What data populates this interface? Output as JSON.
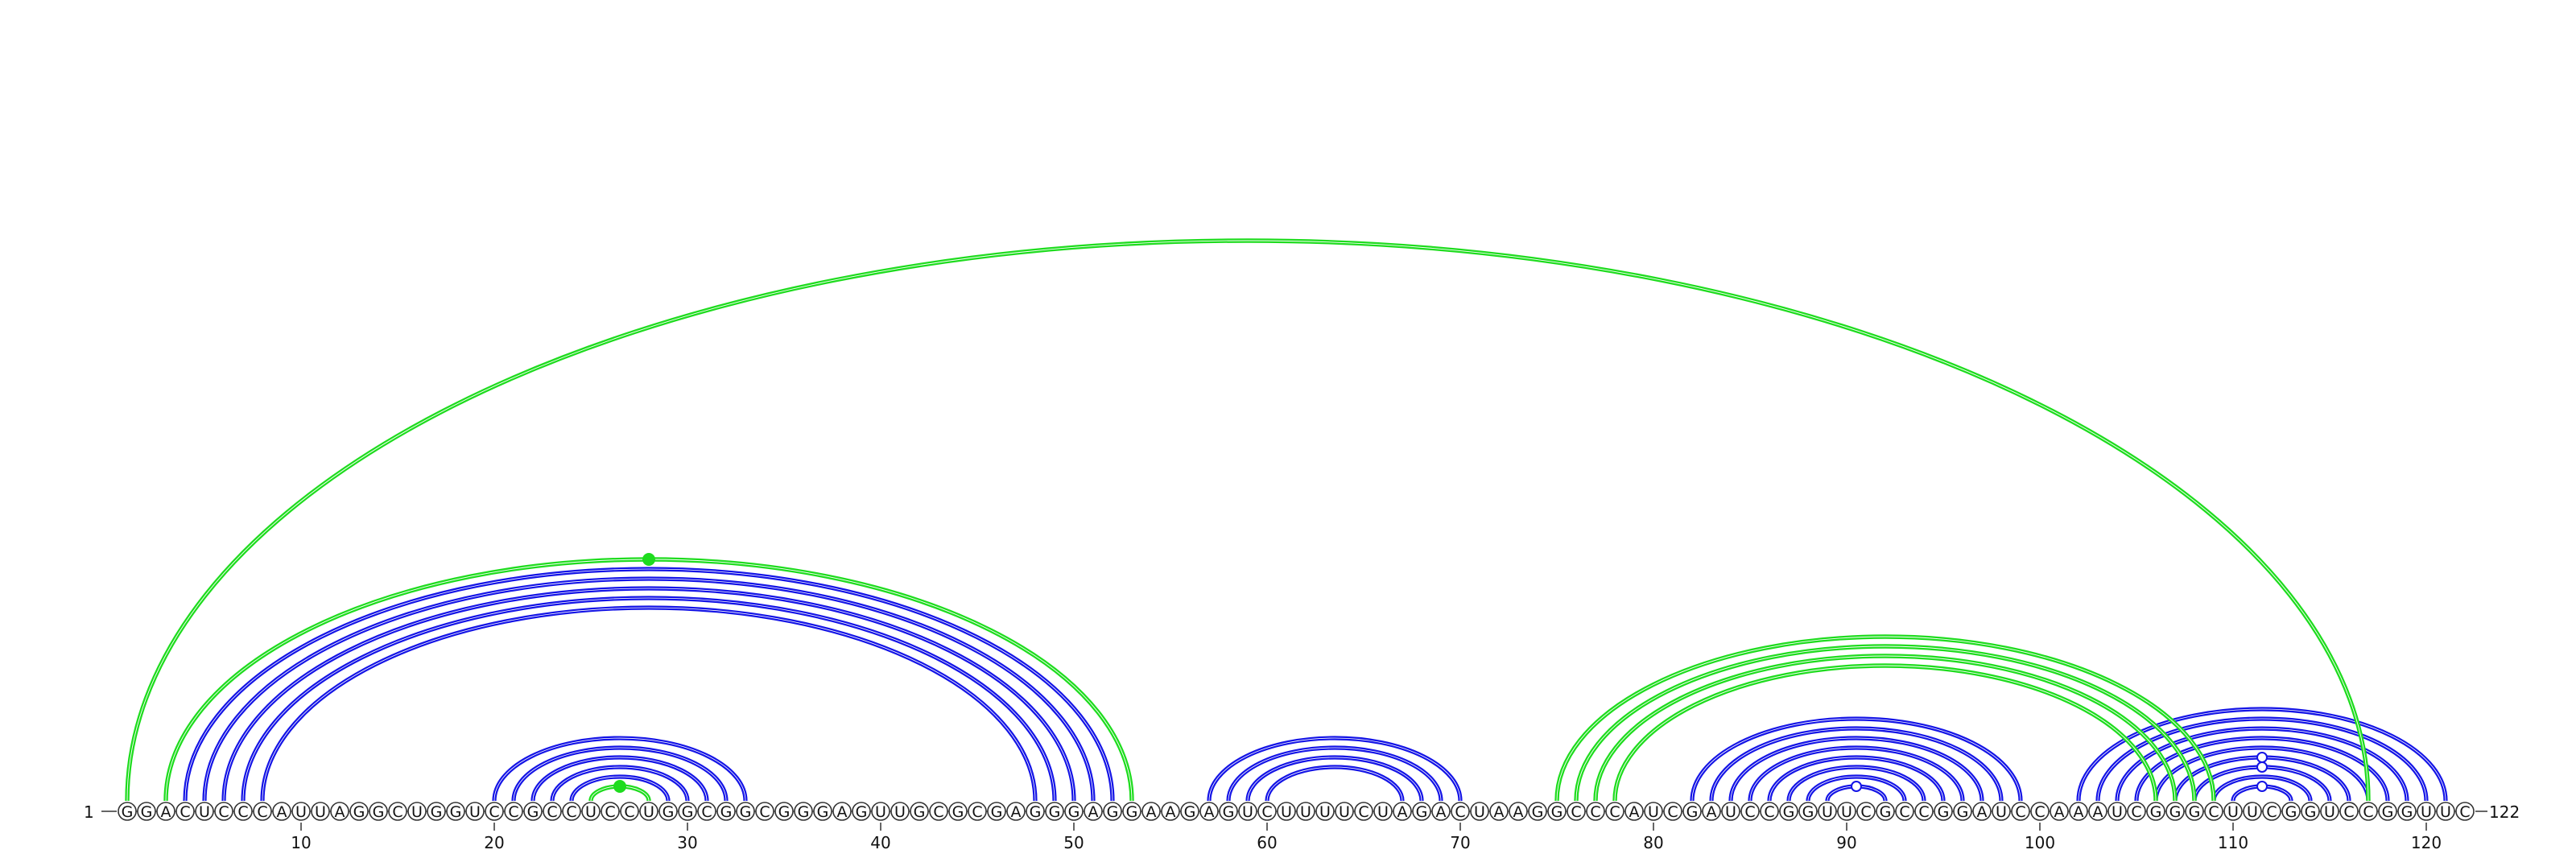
{
  "diagram": {
    "type": "rna-arc-diagram",
    "sequence": "GGACUCCCAUUAGGCUGGUCCGCCUCCUGGCGGCGGGAGUUGCGCGAGGGAGGAAGAGUCUUUUCUAGACUAAGGCCCAUCGAUCCGGUUCGCCGGAUCCAAAUCGGGCUUCGGUCCGGUUC",
    "start_label": "1",
    "end_label": "122",
    "ticks": [
      "10",
      "20",
      "30",
      "40",
      "50",
      "60",
      "70",
      "80",
      "90",
      "100",
      "110",
      "120"
    ],
    "colors": {
      "nested": "#1414e6",
      "crossing": "#1edc1e",
      "nucleotide_stroke": "#333333"
    },
    "blue_pairs": [
      [
        4,
        52
      ],
      [
        5,
        51
      ],
      [
        6,
        50
      ],
      [
        7,
        49
      ],
      [
        8,
        48
      ],
      [
        20,
        33
      ],
      [
        21,
        32
      ],
      [
        22,
        31
      ],
      [
        23,
        30
      ],
      [
        24,
        29
      ],
      [
        57,
        70
      ],
      [
        58,
        69
      ],
      [
        59,
        68
      ],
      [
        60,
        67
      ],
      [
        82,
        99
      ],
      [
        83,
        98
      ],
      [
        84,
        97
      ],
      [
        85,
        96
      ],
      [
        86,
        95
      ],
      [
        87,
        94
      ],
      [
        88,
        93
      ],
      [
        89,
        92
      ],
      [
        102,
        121
      ],
      [
        103,
        120
      ],
      [
        104,
        119
      ],
      [
        105,
        118
      ],
      [
        106,
        117
      ],
      [
        107,
        116
      ],
      [
        108,
        115
      ],
      [
        109,
        114
      ],
      [
        110,
        113
      ]
    ],
    "green_pairs": [
      [
        1,
        117
      ],
      [
        3,
        53
      ],
      [
        25,
        28
      ],
      [
        75,
        109
      ],
      [
        76,
        108
      ],
      [
        77,
        107
      ],
      [
        78,
        106
      ]
    ],
    "markers": [
      {
        "pair": [
          3,
          53
        ],
        "filled": true
      },
      {
        "pair": [
          25,
          28
        ],
        "filled": true
      },
      {
        "pair": [
          89,
          92
        ],
        "filled": false
      },
      {
        "pair": [
          110,
          113
        ],
        "filled": false
      },
      {
        "pair": [
          107,
          116
        ],
        "filled": false
      },
      {
        "pair": [
          108,
          115
        ],
        "filled": false
      }
    ]
  }
}
